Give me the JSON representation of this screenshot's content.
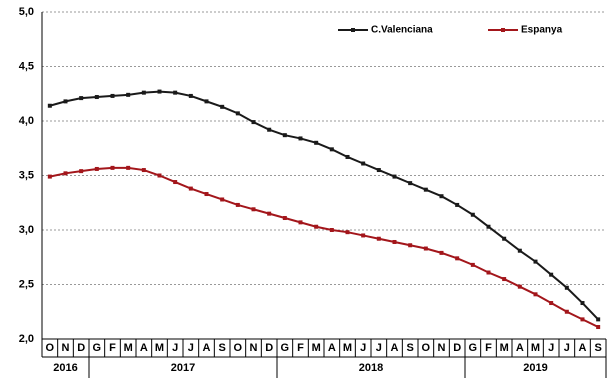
{
  "chart_data": {
    "type": "line",
    "categories": [
      "O",
      "N",
      "D",
      "G",
      "F",
      "M",
      "A",
      "M",
      "J",
      "J",
      "A",
      "S",
      "O",
      "N",
      "D",
      "G",
      "F",
      "M",
      "A",
      "M",
      "J",
      "J",
      "A",
      "S",
      "O",
      "N",
      "D",
      "G",
      "F",
      "M",
      "A",
      "M",
      "J",
      "J",
      "A",
      "S"
    ],
    "year_spans": [
      {
        "label": "2016",
        "count": 3
      },
      {
        "label": "2017",
        "count": 12
      },
      {
        "label": "2018",
        "count": 12
      },
      {
        "label": "2019",
        "count": 9
      }
    ],
    "series": [
      {
        "name": "C.Valenciana",
        "color": "#1a1a1a",
        "values": [
          4.14,
          4.18,
          4.21,
          4.22,
          4.23,
          4.24,
          4.26,
          4.27,
          4.26,
          4.23,
          4.18,
          4.13,
          4.07,
          3.99,
          3.92,
          3.87,
          3.84,
          3.8,
          3.74,
          3.67,
          3.61,
          3.55,
          3.49,
          3.43,
          3.37,
          3.31,
          3.23,
          3.14,
          3.03,
          2.92,
          2.81,
          2.71,
          2.59,
          2.47,
          2.33,
          2.18
        ]
      },
      {
        "name": "Espanya",
        "color": "#a3161b",
        "values": [
          3.49,
          3.52,
          3.54,
          3.56,
          3.57,
          3.57,
          3.55,
          3.5,
          3.44,
          3.38,
          3.33,
          3.28,
          3.23,
          3.19,
          3.15,
          3.11,
          3.07,
          3.03,
          3.0,
          2.98,
          2.95,
          2.92,
          2.89,
          2.86,
          2.83,
          2.79,
          2.74,
          2.68,
          2.61,
          2.55,
          2.48,
          2.41,
          2.33,
          2.25,
          2.18,
          2.11
        ]
      }
    ],
    "ylim": [
      2.0,
      5.0
    ],
    "yticks": [
      {
        "value": 2.0,
        "label": "2,0"
      },
      {
        "value": 2.5,
        "label": "2,5"
      },
      {
        "value": 3.0,
        "label": "3,0"
      },
      {
        "value": 3.5,
        "label": "3,5"
      },
      {
        "value": 4.0,
        "label": "4,0"
      },
      {
        "value": 4.5,
        "label": "4,5"
      },
      {
        "value": 5.0,
        "label": "5,0"
      }
    ],
    "grid": true,
    "legend": "top"
  }
}
